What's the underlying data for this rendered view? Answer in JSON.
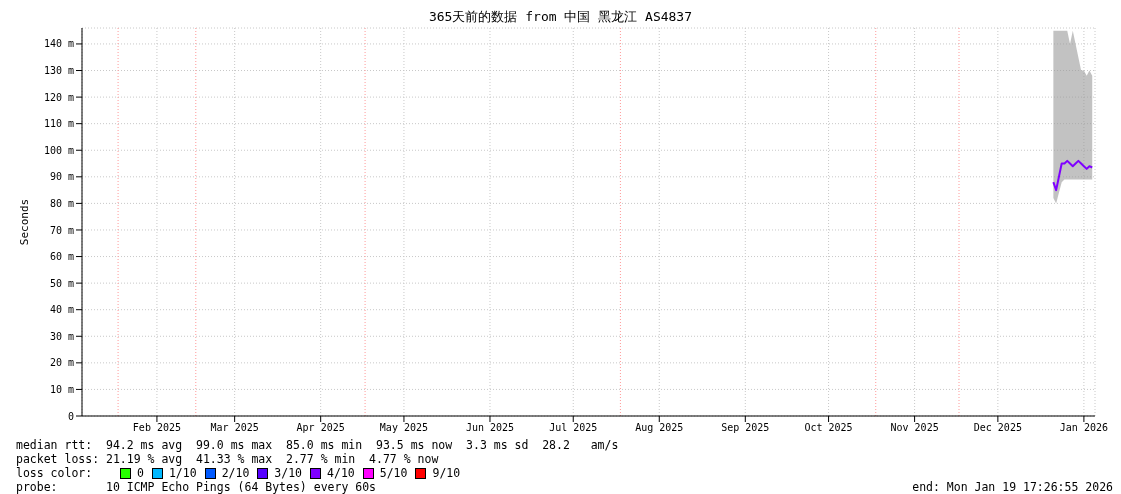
{
  "chart_data": {
    "type": "line",
    "title": "365天前的数据 from 中国 黑龙江 AS4837",
    "ylabel": "Seconds",
    "legend_title": "loss color:",
    "legend": "bottom left",
    "grid": true,
    "line_style": "solid",
    "xlim": [
      "2025-01-19",
      "2026-01-19"
    ],
    "xticks": [
      {
        "value": "2025-02-15",
        "label": "Feb 2025"
      },
      {
        "value": "2025-03-15",
        "label": "Mar 2025"
      },
      {
        "value": "2025-04-15",
        "label": "Apr 2025"
      },
      {
        "value": "2025-05-15",
        "label": "May 2025"
      },
      {
        "value": "2025-06-15",
        "label": "Jun 2025"
      },
      {
        "value": "2025-07-15",
        "label": "Jul 2025"
      },
      {
        "value": "2025-08-15",
        "label": "Aug 2025"
      },
      {
        "value": "2025-09-15",
        "label": "Sep 2025"
      },
      {
        "value": "2025-10-15",
        "label": "Oct 2025"
      },
      {
        "value": "2025-11-15",
        "label": "Nov 2025"
      },
      {
        "value": "2025-12-15",
        "label": "Dec 2025"
      },
      {
        "value": "2026-01-15",
        "label": "Jan 2026"
      }
    ],
    "ylim": [
      0,
      146
    ],
    "yticks": [
      0,
      {
        "value": 10,
        "label": "10 m"
      },
      {
        "value": 20,
        "label": "20 m"
      },
      {
        "value": 30,
        "label": "30 m"
      },
      {
        "value": 40,
        "label": "40 m"
      },
      {
        "value": 50,
        "label": "50 m"
      },
      {
        "value": 60,
        "label": "60 m"
      },
      {
        "value": 70,
        "label": "70 m"
      },
      {
        "value": 80,
        "label": "80 m"
      },
      {
        "value": 90,
        "label": "90 m"
      },
      {
        "value": 100,
        "label": "100 m"
      },
      {
        "value": 110,
        "label": "110 m"
      },
      {
        "value": 120,
        "label": "120 m"
      },
      {
        "value": 130,
        "label": "130 m"
      },
      {
        "value": 140,
        "label": "140 m"
      }
    ],
    "ref_lines": [
      {
        "axis": "x",
        "value": "2025-02-01",
        "color": "#ff9999",
        "line_style": "dotted"
      },
      {
        "axis": "x",
        "value": "2025-03-01",
        "color": "#ff9999",
        "line_style": "dotted"
      },
      {
        "axis": "x",
        "value": "2025-05-01",
        "color": "#ff9999",
        "line_style": "dotted"
      },
      {
        "axis": "x",
        "value": "2025-08-01",
        "color": "#ff9999",
        "line_style": "dotted"
      },
      {
        "axis": "x",
        "value": "2025-11-01",
        "color": "#ff9999",
        "line_style": "dotted"
      },
      {
        "axis": "x",
        "value": "2025-12-01",
        "color": "#ff9999",
        "line_style": "dotted"
      }
    ],
    "series": [
      {
        "color": "#7f00ff",
        "x": [
          "2026-01-04",
          "2026-01-05",
          "2026-01-06",
          "2026-01-07",
          "2026-01-08",
          "2026-01-09",
          "2026-01-10",
          "2026-01-11",
          "2026-01-12",
          "2026-01-13",
          "2026-01-14",
          "2026-01-15",
          "2026-01-16",
          "2026-01-17",
          "2026-01-18"
        ],
        "values": [
          88,
          85,
          90,
          95,
          95,
          96,
          95,
          94,
          95,
          96,
          95,
          94,
          93,
          94,
          93.5
        ],
        "lower": [
          82,
          80,
          84,
          88,
          89,
          89,
          89,
          89,
          89,
          89,
          89,
          89,
          89,
          89,
          89
        ],
        "upper": [
          145,
          145,
          145,
          145,
          145,
          145,
          140,
          145,
          140,
          135,
          130,
          130,
          128,
          130,
          128
        ]
      },
      {
        "type": "scatter",
        "name": "0",
        "color": "#26ff00"
      },
      {
        "type": "scatter",
        "name": "1/10",
        "color": "#00b8ff"
      },
      {
        "type": "scatter",
        "name": "2/10",
        "color": "#0059ff"
      },
      {
        "type": "scatter",
        "name": "3/10",
        "color": "#5500ff"
      },
      {
        "type": "scatter",
        "name": "4/10",
        "color": "#7f00ff"
      },
      {
        "type": "scatter",
        "name": "5/10",
        "color": "#ff00ff"
      },
      {
        "type": "scatter",
        "name": "9/10",
        "color": "#ff0000"
      }
    ],
    "annotations": [
      "median rtt:  94.2 ms avg  99.0 ms max  85.0 ms min  93.5 ms now  3.3 ms sd  28.2   am/s",
      "packet loss: 21.19 % avg  41.33 % max  2.77 % min  4.77 % now",
      "probe:       10 ICMP Echo Pings (64 Bytes) every 60s",
      "end: Mon Jan 19 17:26:55 2026"
    ]
  }
}
